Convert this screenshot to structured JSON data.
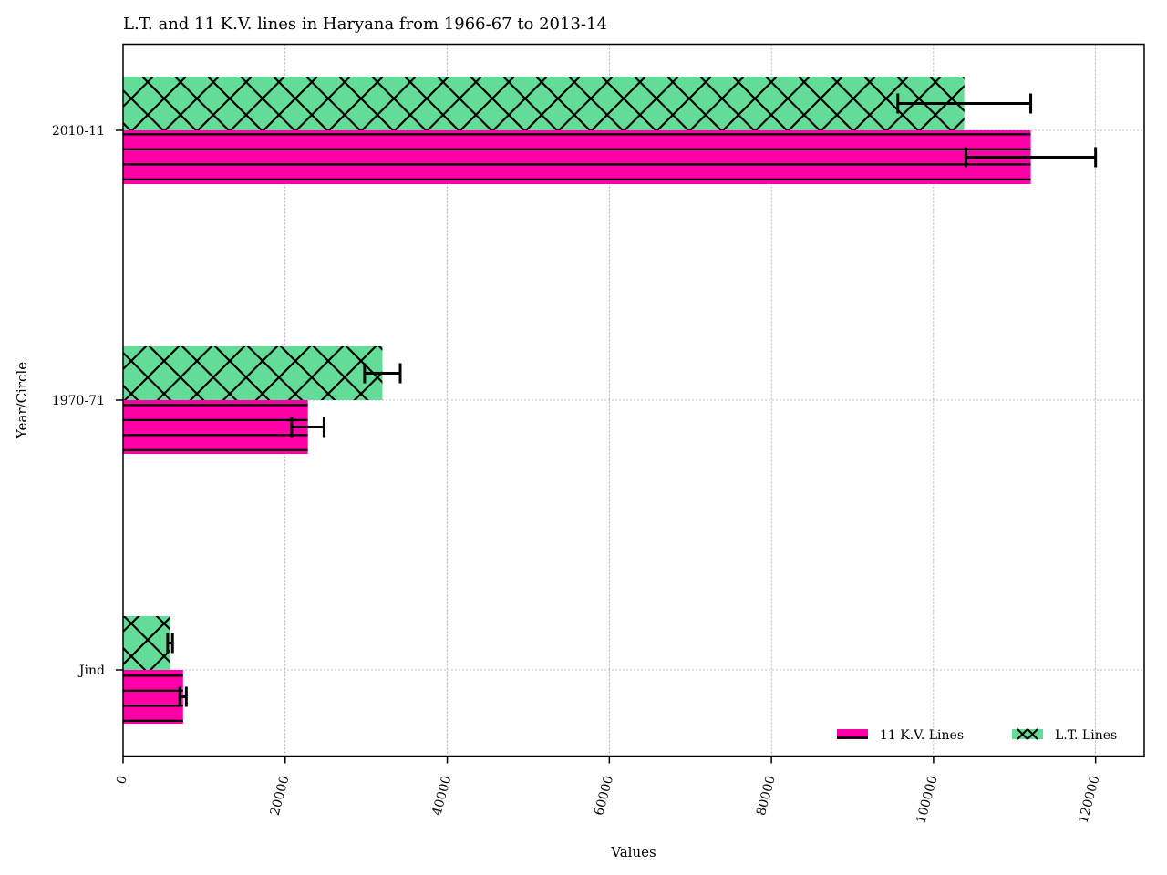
{
  "chart_data": {
    "type": "bar",
    "orientation": "horizontal",
    "title": "L.T. and 11 K.V. lines in Haryana from 1966-67 to 2013-14",
    "xlabel": "Values",
    "ylabel": "Year/Circle",
    "categories": [
      "Jind",
      "1970-71",
      "2010-11"
    ],
    "xlim": [
      0,
      126000
    ],
    "xticks": [
      0,
      20000,
      40000,
      60000,
      80000,
      100000,
      120000
    ],
    "xtick_labels": [
      "0",
      "20000",
      "40000",
      "60000",
      "80000",
      "100000",
      "120000"
    ],
    "grid": true,
    "legend_position": "lower-right",
    "series": [
      {
        "name": "11 K.V. Lines",
        "values": [
          7400,
          22800,
          112000
        ],
        "errors": [
          400,
          2000,
          8000
        ],
        "color": "#ff00a8",
        "hatch": "horizontal"
      },
      {
        "name": "L.T. Lines",
        "values": [
          5800,
          32000,
          103800
        ],
        "errors": [
          300,
          2200,
          8200
        ],
        "color": "#62dc96",
        "hatch": "crosshatch"
      }
    ]
  }
}
